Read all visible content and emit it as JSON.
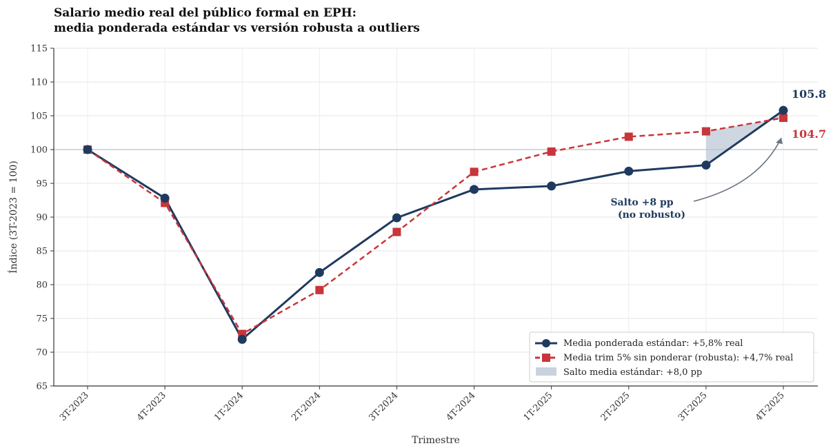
{
  "chart_data": {
    "type": "line",
    "title_line1": "Salario medio real del público formal en EPH:",
    "title_line2": "media ponderada estándar vs versión robusta a outliers",
    "xlabel": "Trimestre",
    "ylabel": "Índice (3T-2023 = 100)",
    "ylim": [
      65,
      115
    ],
    "yticks": [
      65,
      70,
      75,
      80,
      85,
      90,
      95,
      100,
      105,
      110,
      115
    ],
    "grid": true,
    "categories": [
      "3T-2023",
      "4T-2023",
      "1T-2024",
      "2T-2024",
      "3T-2024",
      "4T-2024",
      "1T-2025",
      "2T-2025",
      "3T-2025",
      "4T-2025"
    ],
    "series": [
      {
        "name": "Media ponderada estándar: +5,8% real",
        "color": "#1f3a5f",
        "marker": "circle",
        "style": "solid",
        "values": [
          100.0,
          92.8,
          71.9,
          81.8,
          89.9,
          94.1,
          94.6,
          96.8,
          97.7,
          105.8
        ]
      },
      {
        "name": "Media trim 5% sin ponderar (robusta): +4,7% real",
        "color": "#c8353a",
        "marker": "square",
        "style": "dashed",
        "values": [
          100.0,
          92.1,
          72.7,
          79.2,
          87.8,
          96.7,
          99.7,
          101.9,
          102.7,
          104.7
        ]
      }
    ],
    "reference_line": 100,
    "shaded_band": {
      "label": "Salto media estándar: +8,0 pp",
      "color": "#c9d3de",
      "from_category": "3T-2025",
      "to_category": "4T-2025"
    },
    "end_labels": [
      {
        "text": "105.8",
        "color": "#1f3a5f"
      },
      {
        "text": "104.7",
        "color": "#c8353a"
      }
    ],
    "annotation": {
      "line1": "Salto +8 pp",
      "line2": "(no robusto)"
    },
    "legend_placement": "lower-right"
  }
}
